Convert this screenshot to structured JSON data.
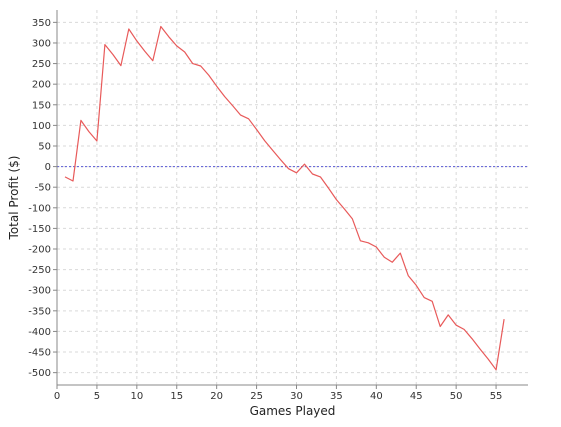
{
  "chart_data": {
    "type": "line",
    "title": "",
    "xlabel": "Games Played",
    "ylabel": "Total Profit ($)",
    "xlim": [
      0,
      59
    ],
    "ylim": [
      -530,
      380
    ],
    "x_ticks": [
      0,
      5,
      10,
      15,
      20,
      25,
      30,
      35,
      40,
      45,
      50,
      55
    ],
    "y_ticks": [
      -500,
      -450,
      -400,
      -350,
      -300,
      -250,
      -200,
      -150,
      -100,
      -50,
      0,
      50,
      100,
      150,
      200,
      250,
      300,
      350
    ],
    "grid": true,
    "reference_line": {
      "y": 0,
      "color": "#5a5ad6",
      "style": "dashed"
    },
    "series": [
      {
        "color": "#e85a5a",
        "x": [
          1,
          2,
          3,
          4,
          5,
          6,
          7,
          8,
          9,
          10,
          11,
          12,
          13,
          14,
          15,
          16,
          17,
          18,
          19,
          20,
          21,
          22,
          23,
          24,
          25,
          26,
          27,
          28,
          29,
          30,
          31,
          32,
          33,
          34,
          35,
          36,
          37,
          38,
          39,
          40,
          41,
          42,
          43,
          44,
          45,
          46,
          47,
          48,
          49,
          50,
          51,
          52,
          53,
          54,
          55,
          56
        ],
        "y": [
          -25,
          -35,
          112,
          85,
          62,
          296,
          272,
          245,
          334,
          305,
          280,
          257,
          340,
          315,
          293,
          278,
          250,
          244,
          222,
          195,
          170,
          148,
          125,
          116,
          90,
          63,
          40,
          17,
          -5,
          -15,
          6,
          -18,
          -25,
          -52,
          -80,
          -103,
          -127,
          -180,
          -185,
          -195,
          -220,
          -232,
          -210,
          -265,
          -288,
          -318,
          -327,
          -388,
          -360,
          -385,
          -395,
          -418,
          -443,
          -467,
          -493,
          -370
        ]
      }
    ]
  }
}
